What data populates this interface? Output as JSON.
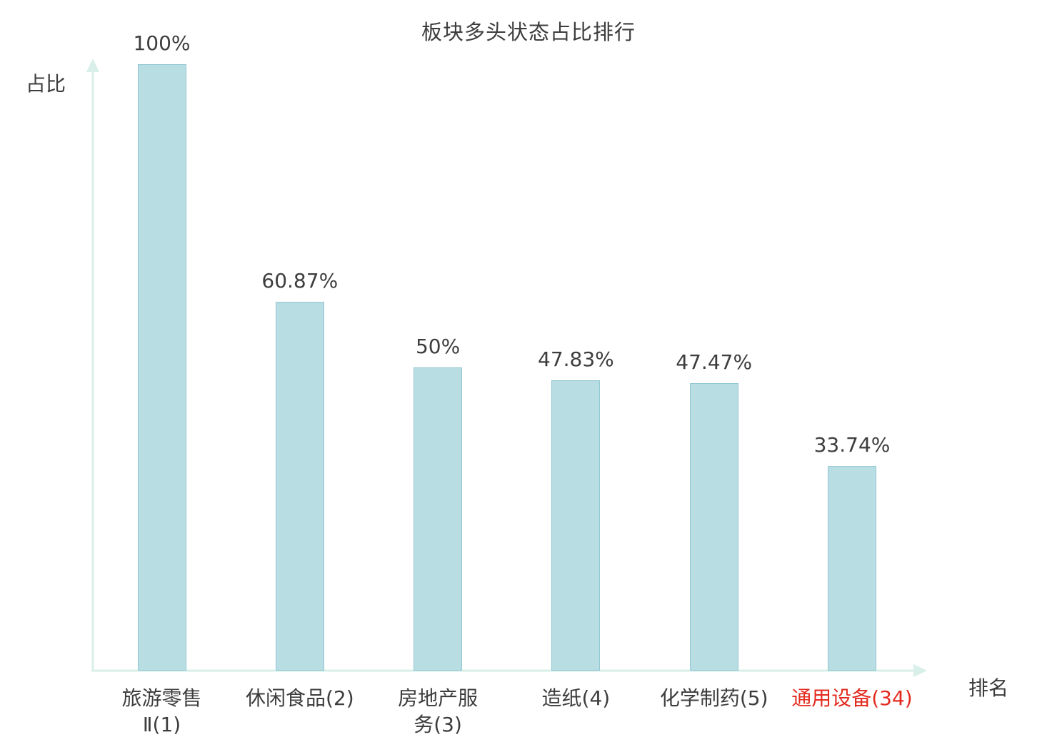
{
  "chart_data": {
    "type": "bar",
    "title": "板块多头状态占比排行",
    "xlabel": "排名",
    "ylabel": "占比",
    "categories": [
      "旅游零售Ⅱ(1)",
      "休闲食品(2)",
      "房地产服务(3)",
      "造纸(4)",
      "化学制药(5)",
      "通用设备(34)"
    ],
    "category_lines": [
      [
        "旅游零售",
        "Ⅱ(1)"
      ],
      [
        "休闲食品(2)"
      ],
      [
        "房地产服",
        "务(3)"
      ],
      [
        "造纸(4)"
      ],
      [
        "化学制药(5)"
      ],
      [
        "通用设备(34)"
      ]
    ],
    "values": [
      100,
      60.87,
      50,
      47.83,
      47.47,
      33.74
    ],
    "value_labels": [
      "100%",
      "60.87%",
      "50%",
      "47.83%",
      "47.47%",
      "33.74%"
    ],
    "ylim": [
      0,
      100
    ],
    "grid": false,
    "legend": "none",
    "highlight_index": 5,
    "colors": {
      "bar_fill": "#b8dde3",
      "bar_border": "#92c8d2",
      "axis": "#d9efe9",
      "text": "#3d3d3d",
      "highlight_text": "#e32a1e"
    }
  }
}
